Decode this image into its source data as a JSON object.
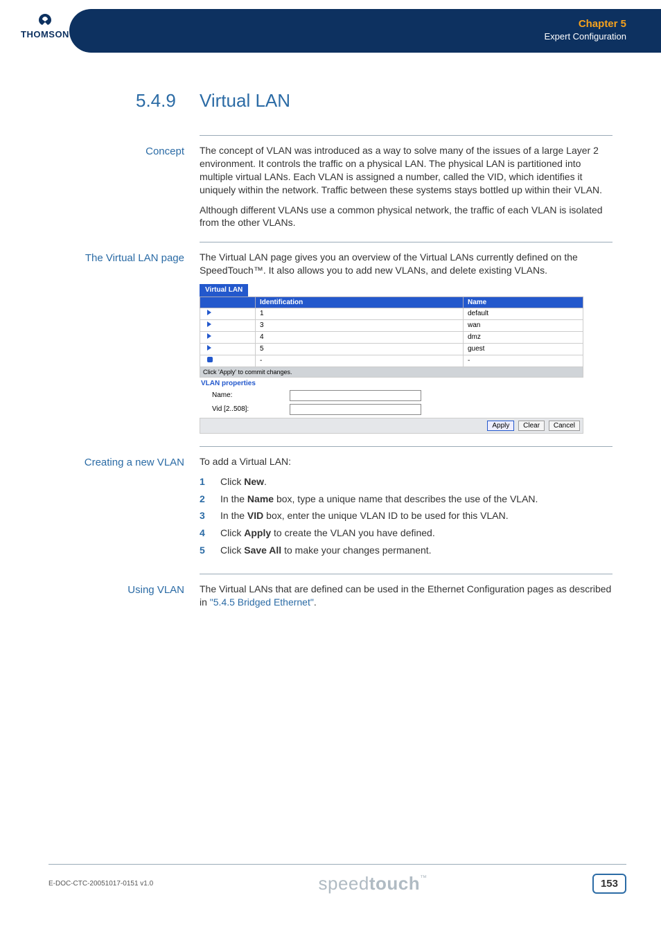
{
  "header": {
    "chapter": "Chapter 5",
    "subtitle": "Expert Configuration",
    "logo_text": "THOMSON"
  },
  "section": {
    "number": "5.4.9",
    "title": "Virtual LAN"
  },
  "concept": {
    "label": "Concept",
    "p1": "The concept of VLAN was introduced as a way to solve many of the issues of a large Layer 2 environment. It controls the traffic on a physical LAN. The physical LAN is partitioned into multiple virtual LANs. Each VLAN is assigned a number, called the VID, which identifies it uniquely within the network. Traffic between these systems stays bottled up within their VLAN.",
    "p2": "Although different VLANs use a common physical network, the traffic of each VLAN is isolated from the other VLANs."
  },
  "vlan_page": {
    "label": "The Virtual LAN page",
    "p1": "The Virtual LAN page gives you an overview of the Virtual LANs currently defined on the SpeedTouch™. It also allows you to add new VLANs, and delete existing VLANs.",
    "panel": {
      "tab": "Virtual LAN",
      "columns": [
        "",
        "Identification",
        "Name"
      ],
      "rows": [
        {
          "icon": "tri",
          "id": "1",
          "name": "default"
        },
        {
          "icon": "tri",
          "id": "3",
          "name": "wan"
        },
        {
          "icon": "tri",
          "id": "4",
          "name": "dmz"
        },
        {
          "icon": "tri",
          "id": "5",
          "name": "guest"
        },
        {
          "icon": "sq",
          "id": "-",
          "name": "-"
        }
      ],
      "hint": "Click 'Apply' to commit changes.",
      "props_head": "VLAN properties",
      "prop_name": "Name:",
      "prop_vid": "Vid [2..508]:",
      "buttons": {
        "apply": "Apply",
        "clear": "Clear",
        "cancel": "Cancel"
      }
    }
  },
  "creating": {
    "label": "Creating a new VLAN",
    "intro": "To add a Virtual LAN:",
    "steps": [
      {
        "pre": "Click ",
        "b": "New",
        "post": "."
      },
      {
        "pre": "In the ",
        "b": "Name",
        "post": " box, type a unique name that describes the use of the VLAN."
      },
      {
        "pre": "In the ",
        "b": "VID",
        "post": " box, enter the unique VLAN ID to be used for this VLAN."
      },
      {
        "pre": "Click ",
        "b": "Apply",
        "post": " to create the VLAN you have defined."
      },
      {
        "pre": "Click ",
        "b": "Save All",
        "post": " to make your changes permanent."
      }
    ]
  },
  "using": {
    "label": "Using VLAN",
    "p1_a": "The Virtual LANs that are defined can be used in the Ethernet Configuration pages as described in ",
    "p1_link": "\"5.4.5 Bridged Ethernet\"",
    "p1_b": "."
  },
  "footer": {
    "doc_id": "E-DOC-CTC-20051017-0151 v1.0",
    "brand_light": "speed",
    "brand_bold": "touch",
    "page": "153"
  },
  "colors": {
    "header_bg": "#0d3160",
    "accent_orange": "#f6a21d",
    "heading_blue": "#2b6ba5",
    "panel_blue": "#2358cc"
  }
}
